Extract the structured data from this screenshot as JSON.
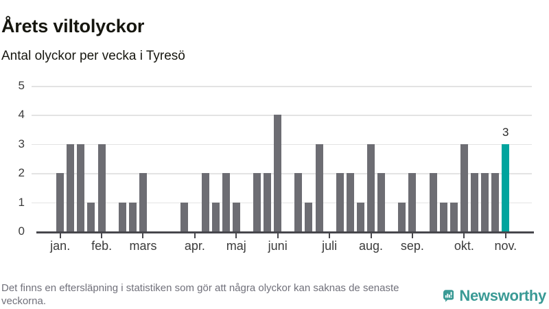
{
  "header": {
    "title": "Årets viltolyckor",
    "subtitle": "Antal olyckor per vecka i Tyresö"
  },
  "footer": {
    "note": "Det finns en eftersläpning i statistiken som gör att några olyckor kan saknas de senaste veckorna.",
    "brand": "Newsworthy"
  },
  "colors": {
    "bar": "#6d6d73",
    "highlight": "#00a49e",
    "grid": "#e3e3e3",
    "axis": "#47474c",
    "brand_teal": "#3a9a95",
    "label": "#3b3b3b",
    "note_text": "#70707a"
  },
  "chart_data": {
    "type": "bar",
    "title": "Årets viltolyckor",
    "subtitle": "Antal olyckor per vecka i Tyresö",
    "x_unit": "week",
    "values": [
      2,
      3,
      3,
      1,
      3,
      0,
      1,
      1,
      2,
      0,
      0,
      0,
      1,
      0,
      2,
      1,
      2,
      1,
      0,
      2,
      2,
      4,
      0,
      2,
      1,
      3,
      0,
      2,
      2,
      1,
      3,
      2,
      0,
      1,
      2,
      0,
      2,
      1,
      1,
      3,
      2,
      2,
      2,
      3
    ],
    "highlight_last_bar": true,
    "last_value_label": "3",
    "month_ticks": [
      {
        "label": "jan.",
        "week_index": 0
      },
      {
        "label": "feb.",
        "week_index": 4
      },
      {
        "label": "mars",
        "week_index": 8
      },
      {
        "label": "apr.",
        "week_index": 13
      },
      {
        "label": "maj",
        "week_index": 17
      },
      {
        "label": "juni",
        "week_index": 21
      },
      {
        "label": "juli",
        "week_index": 26
      },
      {
        "label": "aug.",
        "week_index": 30
      },
      {
        "label": "sep.",
        "week_index": 34
      },
      {
        "label": "okt.",
        "week_index": 39
      },
      {
        "label": "nov.",
        "week_index": 43
      }
    ],
    "ylim": [
      0,
      5
    ],
    "yticks": [
      0,
      1,
      2,
      3,
      4,
      5
    ],
    "grid": true,
    "legend": "none"
  }
}
